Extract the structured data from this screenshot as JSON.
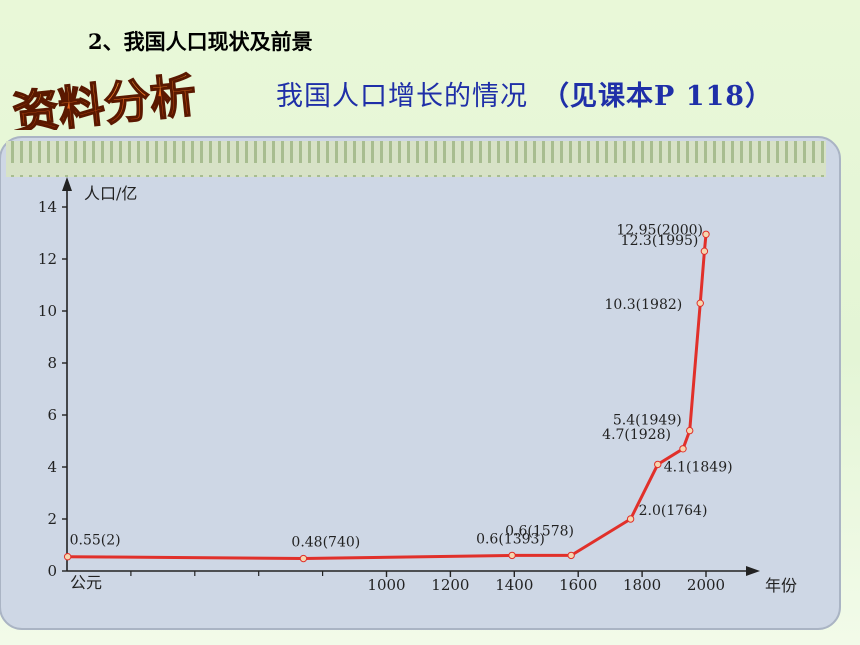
{
  "header": {
    "heading": "2、我国人口现状及前景",
    "badge_text": "资料分析",
    "subtitle": "我国人口增长的情况",
    "subtitle_ref": "（见课本P 118）"
  },
  "colors": {
    "line": "#e1302a",
    "subtitle": "#1f2fa8",
    "panel_bg": "#cfd8e6"
  },
  "chart_data": {
    "type": "line",
    "ylabel": "人口/亿",
    "xlabel": "年份",
    "x_origin_label": "公元",
    "ylim": [
      0,
      14
    ],
    "yticks": [
      0,
      2,
      4,
      6,
      8,
      10,
      12,
      14
    ],
    "xlim": [
      0,
      2100
    ],
    "xticks": [
      1000,
      1200,
      1400,
      1600,
      1800,
      2000
    ],
    "grid": false,
    "series": [
      {
        "x": [
          2,
          740,
          1393,
          1578,
          1764,
          1849,
          1928,
          1949,
          1982,
          1995,
          2000
        ],
        "values": [
          0.55,
          0.48,
          0.6,
          0.6,
          2.0,
          4.1,
          4.7,
          5.4,
          10.3,
          12.3,
          12.95
        ]
      }
    ],
    "annotations": [
      "0.55(2)",
      "0.48(740)",
      "0.6(1393)",
      "0.6(1578)",
      "2.0(1764)",
      "4.1(1849)",
      "4.7(1928)",
      "5.4(1949)",
      "10.3(1982)",
      "12.3(1995)",
      "12.95(2000)"
    ]
  }
}
